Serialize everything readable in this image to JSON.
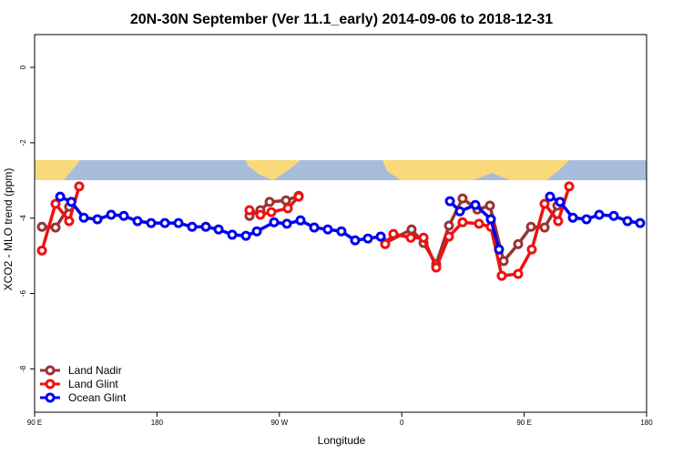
{
  "chart_data": {
    "type": "line",
    "title": "20N-30N September (Ver 11.1_early)   2014-09-06 to 2018-12-31",
    "x_label": "Longitude",
    "y_label": "XCO2 - MLO trend (ppm)",
    "xlim": [
      90,
      540
    ],
    "ylim": [
      -9.15,
      0.87
    ],
    "xticks": [
      {
        "value": 90,
        "label": "90 E"
      },
      180,
      {
        "value": 270,
        "label": "90 W"
      },
      {
        "value": 360,
        "label": "0"
      },
      {
        "value": 450,
        "label": "90 E"
      },
      {
        "value": 540,
        "label": "180"
      }
    ],
    "yticks": [
      0,
      -2,
      -4,
      -6,
      -8
    ],
    "grid": false,
    "legend": "bottom-left",
    "series": [
      {
        "name": "Land Nadir",
        "color": "#993333",
        "x": [
          95.4,
          105.4,
          115.4,
          null,
          248,
          256,
          262.8,
          274.8,
          284.2,
          null,
          347.8,
          367.2,
          376,
          385.3,
          394.7,
          404.7,
          415.5,
          424.8,
          434.9,
          445.6,
          455,
          465,
          474.4
        ],
        "values": [
          -4.23,
          -4.25,
          -3.7,
          null,
          -3.94,
          -3.79,
          -3.57,
          -3.53,
          -3.41,
          null,
          -4.66,
          -4.3,
          -4.66,
          -5.22,
          -4.2,
          -3.48,
          -3.77,
          -3.67,
          -5.14,
          -4.69,
          -4.23,
          -4.25,
          -3.67
        ]
      },
      {
        "name": "Land Glint",
        "color": "#ee1111",
        "x": [
          95.4,
          105.4,
          115.4,
          122.8,
          null,
          248,
          256,
          264.1,
          276.2,
          284.2,
          null,
          347.8,
          353.8,
          366.6,
          376,
          385.3,
          394.7,
          404.7,
          416.8,
          425.5,
          433.5,
          445.6,
          455.6,
          465,
          475,
          483.1
        ],
        "values": [
          -4.86,
          -3.62,
          -4.08,
          -3.16,
          null,
          -3.79,
          -3.91,
          -3.84,
          -3.74,
          -3.43,
          null,
          -4.69,
          -4.42,
          -4.52,
          -4.52,
          -5.31,
          -4.49,
          -4.11,
          -4.15,
          -4.23,
          -5.53,
          -5.48,
          -4.83,
          -3.62,
          -4.08,
          -3.16
        ]
      },
      {
        "name": "Ocean Glint",
        "color": "#0000ee",
        "x": [
          108.8,
          117,
          126.2,
          136.2,
          146.3,
          155.6,
          165.7,
          175.7,
          185.8,
          195.8,
          205.8,
          215.9,
          225.3,
          235.3,
          245.4,
          253.4,
          266.1,
          275.5,
          285.5,
          295.6,
          305.6,
          315.6,
          325.7,
          335.1,
          344.5,
          null,
          395.4,
          402.7,
          414.1,
          425.5,
          431.5,
          null,
          469,
          476.4,
          485.8,
          495.8,
          505.2,
          515.9,
          526,
          535.3
        ],
        "values": [
          -3.43,
          -3.57,
          -3.99,
          -4.03,
          -3.91,
          -3.94,
          -4.08,
          -4.13,
          -4.13,
          -4.13,
          -4.23,
          -4.23,
          -4.3,
          -4.44,
          -4.47,
          -4.35,
          -4.11,
          -4.15,
          -4.06,
          -4.25,
          -4.3,
          -4.35,
          -4.59,
          -4.54,
          -4.49,
          null,
          -3.55,
          -3.82,
          -3.65,
          -4.03,
          -4.83,
          null,
          -3.43,
          -3.57,
          -3.99,
          -4.03,
          -3.91,
          -3.94,
          -4.08,
          -4.13
        ]
      }
    ]
  }
}
